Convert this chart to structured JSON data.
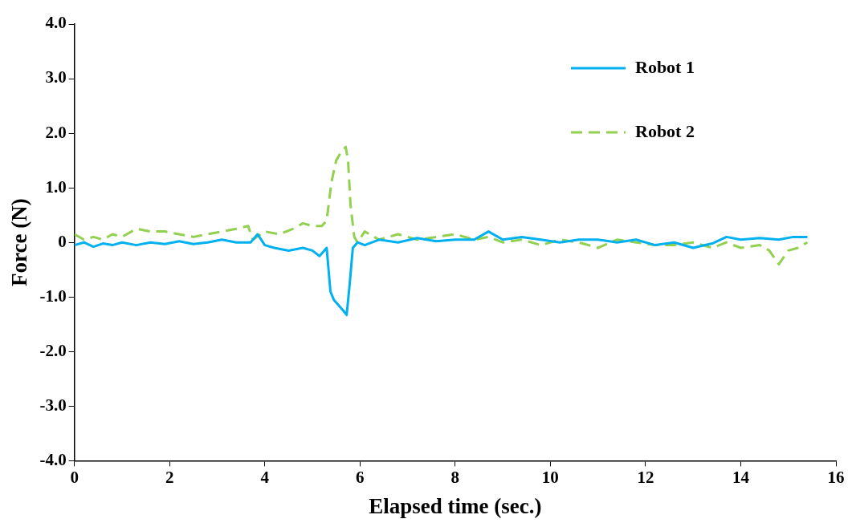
{
  "chart_data": {
    "type": "line",
    "xlabel": "Elapsed time (sec.)",
    "ylabel": "Force (N)",
    "xlim": [
      0,
      16
    ],
    "xticks": [
      0,
      2,
      4,
      6,
      8,
      10,
      12,
      14,
      16
    ],
    "ylim": [
      -4,
      4
    ],
    "yticks": [
      {
        "value": -4,
        "label": "-4.0"
      },
      {
        "value": -3,
        "label": "-3.0"
      },
      {
        "value": -2,
        "label": "-2.0"
      },
      {
        "value": -1,
        "label": "-1.0"
      },
      {
        "value": 0,
        "label": "0"
      },
      {
        "value": 1,
        "label": "1.0"
      },
      {
        "value": 2,
        "label": "2.0"
      },
      {
        "value": 3,
        "label": "3.0"
      },
      {
        "value": 4,
        "label": "4.0"
      }
    ],
    "grid": false,
    "legend": "top right",
    "marker": "none",
    "series": [
      {
        "name": "Robot 1",
        "color": "#00b0f0",
        "line_style": "solid",
        "x": [
          0,
          0.2,
          0.4,
          0.6,
          0.8,
          1,
          1.3,
          1.6,
          1.9,
          2.2,
          2.5,
          2.8,
          3.1,
          3.4,
          3.7,
          3.85,
          4,
          4.2,
          4.5,
          4.8,
          5,
          5.15,
          5.3,
          5.38,
          5.45,
          5.55,
          5.65,
          5.72,
          5.78,
          5.85,
          5.95,
          6.1,
          6.4,
          6.8,
          7.2,
          7.6,
          8,
          8.4,
          8.7,
          9,
          9.4,
          9.8,
          10.2,
          10.6,
          11,
          11.4,
          11.8,
          12.2,
          12.6,
          13,
          13.4,
          13.7,
          14,
          14.4,
          14.8,
          15.1,
          15.4
        ],
        "values": [
          -0.05,
          0,
          -0.08,
          -0.02,
          -0.05,
          0,
          -0.05,
          0,
          -0.03,
          0.02,
          -0.03,
          0,
          0.05,
          0,
          0,
          0.15,
          -0.05,
          -0.1,
          -0.15,
          -0.1,
          -0.15,
          -0.25,
          -0.1,
          -0.9,
          -1.05,
          -1.15,
          -1.25,
          -1.33,
          -0.8,
          -0.1,
          0,
          -0.05,
          0.05,
          0,
          0.08,
          0.02,
          0.05,
          0.05,
          0.2,
          0.05,
          0.1,
          0.05,
          0,
          0.05,
          0.05,
          0,
          0.05,
          -0.05,
          0,
          -0.1,
          -0.02,
          0.1,
          0.05,
          0.08,
          0.05,
          0.1,
          0.1
        ]
      },
      {
        "name": "Robot 2",
        "color": "#92d050",
        "line_style": "dashed",
        "x": [
          0,
          0.2,
          0.4,
          0.6,
          0.8,
          1,
          1.3,
          1.6,
          1.9,
          2.2,
          2.5,
          2.8,
          3.1,
          3.4,
          3.65,
          3.75,
          4,
          4.3,
          4.6,
          4.8,
          5,
          5.2,
          5.3,
          5.4,
          5.5,
          5.6,
          5.7,
          5.75,
          5.8,
          5.88,
          5.95,
          6.1,
          6.4,
          6.8,
          7.2,
          7.6,
          8,
          8.4,
          8.7,
          9,
          9.4,
          9.8,
          10.2,
          10.6,
          11,
          11.4,
          11.8,
          12.2,
          12.6,
          13,
          13.4,
          13.7,
          14,
          14.4,
          14.6,
          14.8,
          15,
          15.2,
          15.4
        ],
        "values": [
          0.15,
          0.05,
          0.1,
          0.05,
          0.15,
          0.1,
          0.25,
          0.2,
          0.2,
          0.15,
          0.1,
          0.15,
          0.2,
          0.25,
          0.3,
          0.05,
          0.2,
          0.15,
          0.25,
          0.35,
          0.3,
          0.3,
          0.4,
          1.1,
          1.5,
          1.65,
          1.75,
          1.5,
          0.7,
          0.1,
          0,
          0.2,
          0.05,
          0.15,
          0.05,
          0.1,
          0.15,
          0.05,
          0.1,
          0,
          0.05,
          -0.05,
          0.05,
          0,
          -0.1,
          0.05,
          0,
          -0.05,
          -0.05,
          0,
          -0.1,
          0,
          -0.1,
          -0.05,
          -0.15,
          -0.4,
          -0.15,
          -0.1,
          0
        ]
      }
    ]
  }
}
